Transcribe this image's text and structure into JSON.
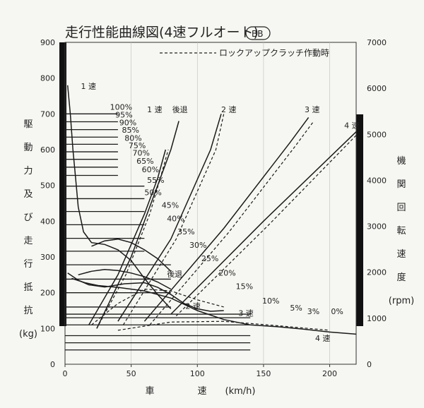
{
  "chart_data": {
    "type": "line",
    "title": "走行性能曲線図(4速フルオート)",
    "title_badge": "BB",
    "legend_dashed": "ロックアップクラッチ作動時",
    "xlabel": [
      "車",
      "速",
      "(km/h)"
    ],
    "ylabel_left": [
      "駆",
      "動",
      "力",
      "及",
      "び",
      "走",
      "行",
      "抵",
      "抗",
      "(kg)"
    ],
    "ylabel_right": [
      "機",
      "関",
      "回",
      "転",
      "速",
      "度",
      "(rpm)"
    ],
    "xlim": [
      0,
      220
    ],
    "ylim_left": [
      0,
      900
    ],
    "ylim_right": [
      0,
      7000
    ],
    "x_ticks": [
      "0",
      "50",
      "100",
      "150",
      "200"
    ],
    "y_ticks_left": [
      "0",
      "100",
      "200",
      "300",
      "400",
      "500",
      "600",
      "700",
      "800",
      "900"
    ],
    "y_ticks_right": [
      "0",
      "1000",
      "2000",
      "3000",
      "4000",
      "5000",
      "6000",
      "7000"
    ],
    "gear_labels": [
      {
        "text": "1 速",
        "x": 12,
        "y": 770
      },
      {
        "text": "1 速",
        "x": 62,
        "y": 705
      },
      {
        "text": "後退",
        "x": 81,
        "y": 705
      },
      {
        "text": "2 速",
        "x": 118,
        "y": 705
      },
      {
        "text": "3 速",
        "x": 181,
        "y": 705
      },
      {
        "text": "4 速",
        "x": 211,
        "y": 660
      },
      {
        "text": "後退",
        "x": 77,
        "y": 245
      },
      {
        "text": "2 速",
        "x": 91,
        "y": 155
      },
      {
        "text": "3 速",
        "x": 131,
        "y": 135
      },
      {
        "text": "4 速",
        "x": 189,
        "y": 65
      }
    ],
    "grade_labels": [
      {
        "text": "100%",
        "x": 34,
        "y": 712
      },
      {
        "text": "95%",
        "x": 38,
        "y": 690
      },
      {
        "text": "90%",
        "x": 41,
        "y": 668
      },
      {
        "text": "85%",
        "x": 43,
        "y": 647
      },
      {
        "text": "80%",
        "x": 45,
        "y": 625
      },
      {
        "text": "75%",
        "x": 48,
        "y": 604
      },
      {
        "text": "70%",
        "x": 51,
        "y": 583
      },
      {
        "text": "65%",
        "x": 54,
        "y": 561
      },
      {
        "text": "60%",
        "x": 58,
        "y": 537
      },
      {
        "text": "55%",
        "x": 62,
        "y": 507
      },
      {
        "text": "50%",
        "x": 60,
        "y": 473
      },
      {
        "text": "45%",
        "x": 73,
        "y": 437
      },
      {
        "text": "40%",
        "x": 77,
        "y": 400
      },
      {
        "text": "35%",
        "x": 85,
        "y": 363
      },
      {
        "text": "30%",
        "x": 94,
        "y": 326
      },
      {
        "text": "25%",
        "x": 103,
        "y": 288
      },
      {
        "text": "20%",
        "x": 116,
        "y": 248
      },
      {
        "text": "15%",
        "x": 129,
        "y": 210
      },
      {
        "text": "10%",
        "x": 149,
        "y": 170
      },
      {
        "text": "5%",
        "x": 170,
        "y": 150
      },
      {
        "text": "3%",
        "x": 183,
        "y": 140
      },
      {
        "text": "0%",
        "x": 201,
        "y": 140
      }
    ],
    "series": [
      {
        "style": "solid",
        "points": [
          [
            2,
            780
          ],
          [
            4,
            700
          ],
          [
            6,
            600
          ],
          [
            8,
            520
          ],
          [
            10,
            440
          ],
          [
            14,
            370
          ],
          [
            20,
            340
          ],
          [
            30,
            335
          ],
          [
            40,
            320
          ],
          [
            50,
            290
          ],
          [
            60,
            240
          ],
          [
            70,
            195
          ],
          [
            80,
            155
          ]
        ]
      },
      {
        "style": "solid",
        "points": [
          [
            2,
            255
          ],
          [
            10,
            235
          ],
          [
            18,
            222
          ],
          [
            30,
            216
          ],
          [
            45,
            225
          ],
          [
            60,
            228
          ],
          [
            70,
            215
          ],
          [
            80,
            195
          ],
          [
            90,
            170
          ],
          [
            100,
            155
          ],
          [
            110,
            148
          ],
          [
            120,
            150
          ]
        ]
      },
      {
        "style": "solid",
        "points": [
          [
            5,
            240
          ],
          [
            15,
            228
          ],
          [
            25,
            220
          ],
          [
            40,
            215
          ],
          [
            60,
            205
          ],
          [
            80,
            185
          ],
          [
            100,
            150
          ],
          [
            120,
            125
          ],
          [
            140,
            110
          ],
          [
            160,
            105
          ],
          [
            180,
            98
          ],
          [
            200,
            90
          ],
          [
            220,
            84
          ]
        ]
      },
      {
        "style": "solid",
        "points": [
          [
            20,
            330
          ],
          [
            30,
            345
          ],
          [
            40,
            350
          ],
          [
            50,
            340
          ],
          [
            60,
            320
          ],
          [
            70,
            295
          ],
          [
            80,
            260
          ]
        ]
      },
      {
        "style": "solid",
        "points": [
          [
            10,
            250
          ],
          [
            20,
            260
          ],
          [
            30,
            265
          ],
          [
            40,
            262
          ],
          [
            50,
            255
          ],
          [
            60,
            245
          ],
          [
            70,
            230
          ],
          [
            80,
            210
          ]
        ]
      },
      {
        "style": "dashed",
        "points": [
          [
            20,
            110
          ],
          [
            40,
            170
          ],
          [
            60,
            210
          ],
          [
            80,
            205
          ],
          [
            100,
            180
          ],
          [
            120,
            160
          ]
        ]
      },
      {
        "style": "dashed",
        "points": [
          [
            40,
            95
          ],
          [
            80,
            118
          ],
          [
            120,
            120
          ],
          [
            160,
            108
          ],
          [
            200,
            95
          ]
        ]
      },
      {
        "style": "solid",
        "points": [
          [
            18,
            110
          ],
          [
            40,
            250
          ],
          [
            60,
            420
          ],
          [
            70,
            520
          ],
          [
            76,
            600
          ]
        ]
      },
      {
        "style": "dashed",
        "points": [
          [
            24,
            100
          ],
          [
            46,
            250
          ],
          [
            64,
            420
          ],
          [
            72,
            520
          ],
          [
            78,
            600
          ]
        ]
      },
      {
        "style": "solid",
        "points": [
          [
            24,
            100
          ],
          [
            50,
            300
          ],
          [
            70,
            500
          ],
          [
            80,
            600
          ],
          [
            86,
            680
          ]
        ]
      },
      {
        "style": "solid",
        "points": [
          [
            40,
            120
          ],
          [
            80,
            350
          ],
          [
            110,
            600
          ],
          [
            118,
            700
          ]
        ]
      },
      {
        "style": "dashed",
        "points": [
          [
            44,
            110
          ],
          [
            84,
            350
          ],
          [
            114,
            600
          ],
          [
            120,
            700
          ]
        ]
      },
      {
        "style": "solid",
        "points": [
          [
            60,
            120
          ],
          [
            120,
            380
          ],
          [
            170,
            620
          ],
          [
            184,
            690
          ]
        ]
      },
      {
        "style": "dashed",
        "points": [
          [
            64,
            110
          ],
          [
            124,
            370
          ],
          [
            174,
            610
          ],
          [
            188,
            680
          ]
        ]
      },
      {
        "style": "solid",
        "points": [
          [
            80,
            140
          ],
          [
            150,
            400
          ],
          [
            220,
            650
          ]
        ]
      },
      {
        "style": "dashed",
        "points": [
          [
            84,
            135
          ],
          [
            154,
            390
          ],
          [
            220,
            640
          ]
        ]
      }
    ],
    "grade_lines_y": [
      700,
      678,
      656,
      635,
      615,
      594,
      573,
      551,
      528,
      498,
      463,
      427,
      390,
      352,
      316,
      278,
      238,
      200,
      160,
      140,
      130,
      110,
      80,
      60,
      40
    ]
  }
}
